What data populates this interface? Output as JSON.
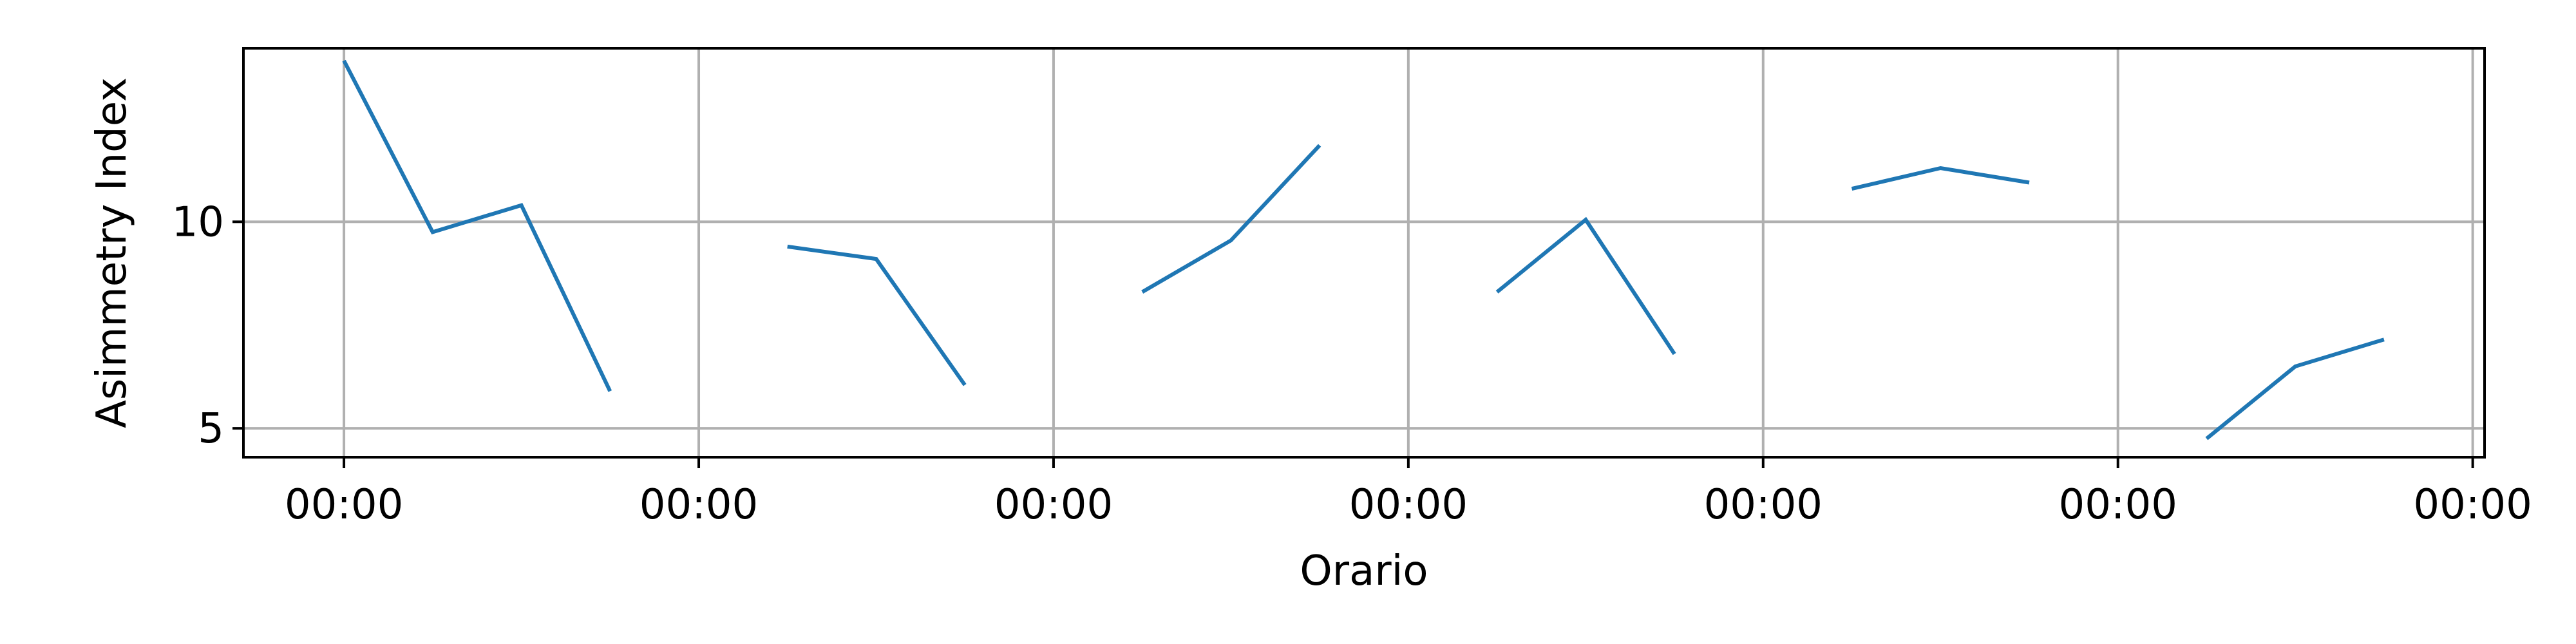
{
  "chart_data": {
    "type": "line",
    "title": "",
    "xlabel": "Orario",
    "ylabel": "Asimmetry Index",
    "x_ticks": [
      {
        "x": 0,
        "label": "00:00"
      },
      {
        "x": 24,
        "label": "00:00"
      },
      {
        "x": 48,
        "label": "00:00"
      },
      {
        "x": 72,
        "label": "00:00"
      },
      {
        "x": 96,
        "label": "00:00"
      },
      {
        "x": 120,
        "label": "00:00"
      },
      {
        "x": 144,
        "label": "00:00"
      }
    ],
    "y_ticks": [
      {
        "y": 5,
        "label": "5"
      },
      {
        "y": 10,
        "label": "10"
      }
    ],
    "xlim": [
      -6.8,
      144.8
    ],
    "ylim": [
      4.3,
      14.2
    ],
    "grid": true,
    "color": "#1f77b4",
    "segments": [
      {
        "points": [
          [
            0,
            13.9
          ],
          [
            6,
            9.75
          ],
          [
            12,
            10.4
          ],
          [
            18,
            5.9
          ]
        ]
      },
      {
        "points": [
          [
            30,
            9.4
          ],
          [
            36,
            9.1
          ],
          [
            42,
            6.05
          ]
        ]
      },
      {
        "points": [
          [
            54,
            8.3
          ],
          [
            60,
            9.55
          ],
          [
            66,
            11.85
          ]
        ]
      },
      {
        "points": [
          [
            78,
            8.3
          ],
          [
            84,
            10.05
          ],
          [
            90,
            6.8
          ]
        ]
      },
      {
        "points": [
          [
            102,
            10.8
          ],
          [
            108,
            11.3
          ],
          [
            114,
            10.95
          ]
        ]
      },
      {
        "points": [
          [
            126,
            4.75
          ],
          [
            132,
            6.5
          ],
          [
            138,
            7.15
          ]
        ]
      }
    ]
  }
}
